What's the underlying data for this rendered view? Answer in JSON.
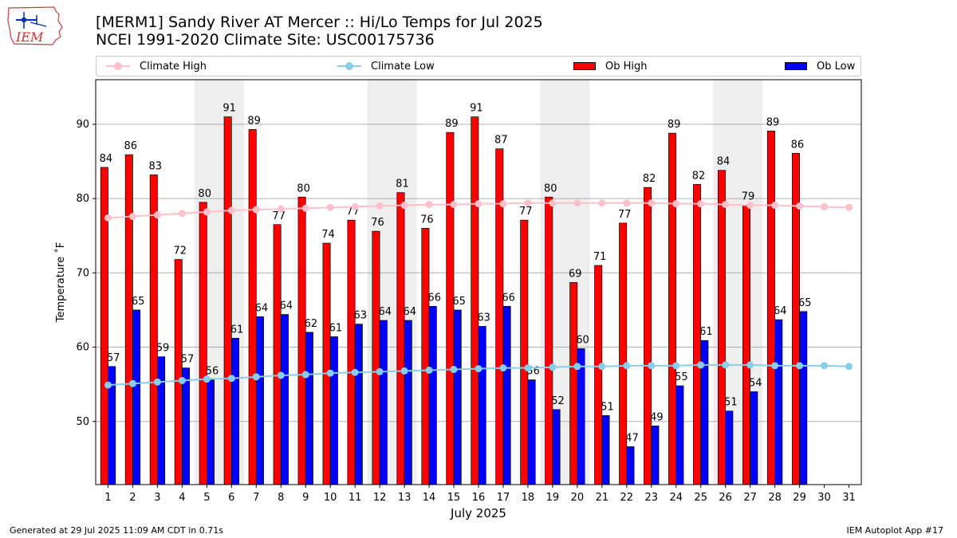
{
  "header": {
    "title_line1": "[MERM1] Sandy River  AT Mercer :: Hi/Lo Temps for Jul 2025",
    "title_line2": "NCEI 1991-2020 Climate Site: USC00175736",
    "logo_text": "IEM"
  },
  "footer": {
    "generated": "Generated at 29 Jul 2025 11:09 AM CDT in 0.71s",
    "app": "IEM Autoplot App #17"
  },
  "chart_data": {
    "type": "bar",
    "xlabel": "July 2025",
    "ylabel": "Temperature ˚F",
    "ylim": [
      41.5,
      96
    ],
    "yticks": [
      50,
      60,
      70,
      80,
      90
    ],
    "grid": true,
    "legend_position": "top",
    "categories": [
      "1",
      "2",
      "3",
      "4",
      "5",
      "6",
      "7",
      "8",
      "9",
      "10",
      "11",
      "12",
      "13",
      "14",
      "15",
      "16",
      "17",
      "18",
      "19",
      "20",
      "21",
      "22",
      "23",
      "24",
      "25",
      "26",
      "27",
      "28",
      "29",
      "30",
      "31"
    ],
    "weekend_shading_days": [
      [
        5,
        6
      ],
      [
        12,
        13
      ],
      [
        19,
        20
      ],
      [
        26,
        27
      ]
    ],
    "bar_labels_rounded": true,
    "series": [
      {
        "name": "Climate High",
        "kind": "line",
        "color": "#ffc0cb",
        "values": [
          77.4,
          77.6,
          77.8,
          78.0,
          78.2,
          78.4,
          78.5,
          78.6,
          78.7,
          78.8,
          78.9,
          79.0,
          79.1,
          79.2,
          79.2,
          79.3,
          79.3,
          79.4,
          79.4,
          79.4,
          79.4,
          79.4,
          79.4,
          79.3,
          79.3,
          79.2,
          79.1,
          79.1,
          79.0,
          78.9,
          78.8
        ]
      },
      {
        "name": "Climate Low",
        "kind": "line",
        "color": "#87ceeb",
        "values": [
          54.9,
          55.1,
          55.3,
          55.5,
          55.7,
          55.8,
          56.0,
          56.2,
          56.3,
          56.5,
          56.6,
          56.7,
          56.8,
          56.9,
          57.0,
          57.1,
          57.2,
          57.2,
          57.3,
          57.4,
          57.4,
          57.5,
          57.5,
          57.5,
          57.6,
          57.6,
          57.6,
          57.5,
          57.5,
          57.5,
          57.4
        ]
      },
      {
        "name": "Ob High",
        "kind": "bar",
        "color": "#ff0000",
        "values": [
          84.2,
          85.9,
          83.2,
          71.8,
          79.5,
          91.0,
          89.3,
          76.5,
          80.2,
          74.0,
          77.1,
          75.6,
          80.8,
          76.0,
          88.9,
          91.0,
          86.7,
          77.1,
          80.2,
          68.7,
          71.0,
          76.7,
          81.5,
          88.8,
          81.9,
          83.8,
          79.1,
          89.1,
          86.1,
          null,
          null
        ]
      },
      {
        "name": "Ob Low",
        "kind": "bar",
        "color": "#0000ff",
        "values": [
          57.4,
          65.0,
          58.7,
          57.2,
          55.6,
          61.2,
          64.1,
          64.4,
          62.0,
          61.4,
          63.1,
          63.6,
          63.6,
          65.5,
          65.0,
          62.8,
          65.5,
          55.6,
          51.6,
          59.8,
          50.8,
          46.6,
          49.4,
          54.8,
          60.9,
          51.4,
          54.0,
          63.7,
          64.8,
          null,
          null
        ]
      }
    ]
  }
}
